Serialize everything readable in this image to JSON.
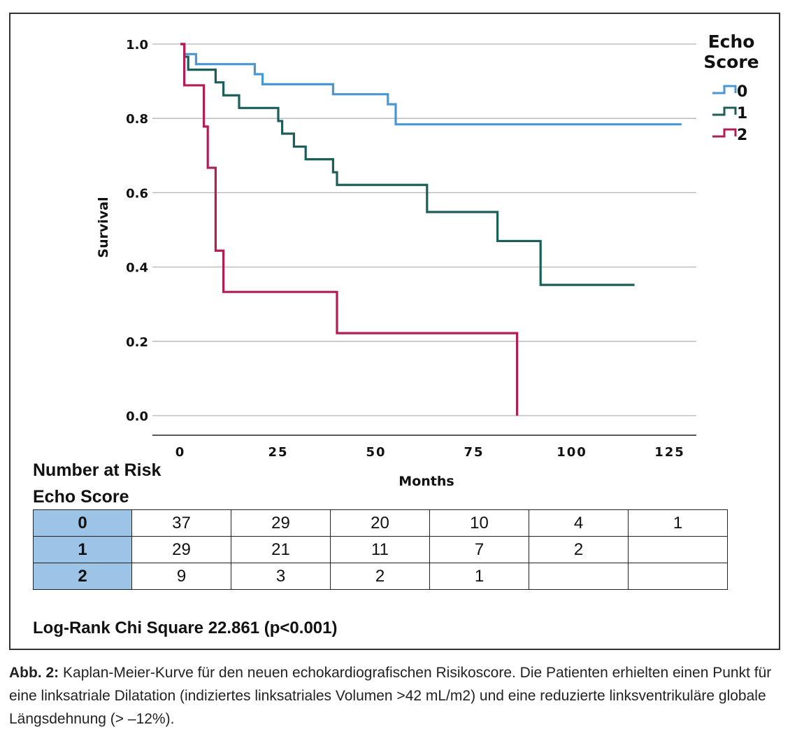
{
  "chart_data": {
    "type": "line",
    "xlabel": "Months",
    "ylabel": "Survival",
    "xlim": [
      0,
      130
    ],
    "ylim": [
      0,
      1.0
    ],
    "x_ticks": [
      "0",
      "25",
      "50",
      "75",
      "100",
      "125"
    ],
    "y_ticks": [
      "0.0",
      "0.2",
      "0.4",
      "0.6",
      "0.8",
      "1.0"
    ],
    "grid": "horizontal",
    "legend": {
      "title_line1": "Echo",
      "title_line2": "Score",
      "position": "top-right"
    },
    "series": [
      {
        "name": "0",
        "color": "#4a97d5",
        "step": true,
        "points": [
          [
            0,
            1.0
          ],
          [
            1,
            0.973
          ],
          [
            4,
            0.946
          ],
          [
            19,
            0.919
          ],
          [
            21,
            0.892
          ],
          [
            39,
            0.865
          ],
          [
            53,
            0.838
          ],
          [
            55,
            0.784
          ],
          [
            128,
            0.784
          ]
        ]
      },
      {
        "name": "1",
        "color": "#1c5f5a",
        "step": true,
        "points": [
          [
            0,
            1.0
          ],
          [
            1,
            0.966
          ],
          [
            2,
            0.931
          ],
          [
            9,
            0.897
          ],
          [
            11,
            0.862
          ],
          [
            15,
            0.828
          ],
          [
            25,
            0.793
          ],
          [
            26,
            0.759
          ],
          [
            29,
            0.724
          ],
          [
            32,
            0.69
          ],
          [
            39,
            0.655
          ],
          [
            40,
            0.621
          ],
          [
            63,
            0.548
          ],
          [
            81,
            0.47
          ],
          [
            92,
            0.352
          ],
          [
            116,
            0.352
          ]
        ]
      },
      {
        "name": "2",
        "color": "#b31d55",
        "step": true,
        "points": [
          [
            0,
            1.0
          ],
          [
            1,
            0.889
          ],
          [
            6,
            0.778
          ],
          [
            7,
            0.667
          ],
          [
            9,
            0.444
          ],
          [
            11,
            0.333
          ],
          [
            40,
            0.222
          ],
          [
            86,
            0.0
          ]
        ]
      }
    ]
  },
  "risk_table": {
    "title_line1": "Number at Risk",
    "title_line2": "Echo Score",
    "rows": [
      {
        "label": "0",
        "values": [
          "37",
          "29",
          "20",
          "10",
          "4",
          "1"
        ]
      },
      {
        "label": "1",
        "values": [
          "29",
          "21",
          "11",
          "7",
          "2",
          ""
        ]
      },
      {
        "label": "2",
        "values": [
          "9",
          "3",
          "2",
          "1",
          "",
          ""
        ]
      }
    ]
  },
  "log_rank": "Log-Rank Chi Square 22.861 (p<0.001)",
  "caption": {
    "label": "Abb. 2:",
    "text": " Kaplan-Meier-Kurve für den neuen echokardiografischen Risikoscore. Die Patienten erhielten einen Punkt für eine linksatriale Dilatation (indiziertes linksatriales Volumen >42 mL/m2) und eine reduzierte linksventrikuläre globale Längsdehnung (> –12%)."
  }
}
